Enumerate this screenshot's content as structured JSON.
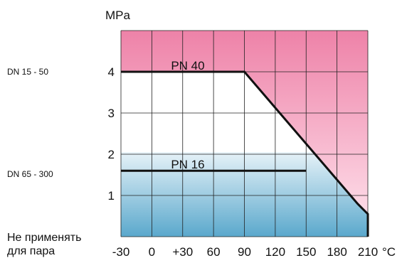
{
  "chart_data": {
    "type": "line",
    "title": "",
    "xlabel": "°C",
    "ylabel": "MPa",
    "x_ticks": [
      "-30",
      "0",
      "+30",
      "60",
      "90",
      "120",
      "150",
      "180",
      "210"
    ],
    "y_ticks": [
      "1",
      "2",
      "3",
      "4"
    ],
    "xlim": [
      -30,
      210
    ],
    "ylim": [
      0,
      5
    ],
    "grid": true,
    "series": [
      {
        "name": "PN 40",
        "x": [
          -30,
          90,
          200,
          210,
          210
        ],
        "y": [
          4.0,
          4.0,
          0.8,
          0.55,
          0
        ]
      },
      {
        "name": "PN 16",
        "x": [
          -30,
          150
        ],
        "y": [
          1.6,
          1.6
        ]
      }
    ],
    "side_labels": {
      "dn_high": "DN 15 - 50",
      "dn_low": "DN 65 - 300",
      "no_steam_1": "Не применять",
      "no_steam_2": "для пара"
    },
    "colors": {
      "pink_top": "#ee82a8",
      "pink_bottom": "#ffe6ef",
      "blue_top": "#e6f2f8",
      "blue_bottom": "#5aa8cc",
      "grid": "#222222",
      "line": "#111111"
    }
  }
}
